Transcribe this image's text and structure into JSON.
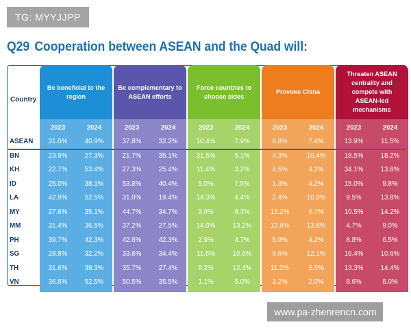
{
  "badge": "TG: MYYJJPP",
  "title": {
    "number": "Q29",
    "text": "Cooperation between ASEAN and the Quad will:"
  },
  "watermark": "www.pa-zhenrencn.com",
  "chart_data": {
    "type": "table",
    "row_header": "Country",
    "years": [
      "2023",
      "2024"
    ],
    "groups": [
      {
        "label": "Be beneficial to the region",
        "color": "#1e8fd6",
        "color_light": "#5aaee4",
        "values": {
          "ASEAN": [
            "31.0%",
            "40.9%"
          ],
          "BN": [
            "23.9%",
            "27.3%"
          ],
          "KH": [
            "22.7%",
            "53.4%"
          ],
          "ID": [
            "25.0%",
            "38.1%"
          ],
          "LA": [
            "42.9%",
            "52.5%"
          ],
          "MY": [
            "27.6%",
            "35.1%"
          ],
          "MM": [
            "31.4%",
            "36.5%"
          ],
          "PH": [
            "39.7%",
            "42.3%"
          ],
          "SG": [
            "28.8%",
            "32.2%"
          ],
          "TH": [
            "31.6%",
            "39.3%"
          ],
          "VN": [
            "36.6%",
            "52.5%"
          ]
        }
      },
      {
        "label": "Be complementary to ASEAN efforts",
        "color": "#5b55ac",
        "color_light": "#8c86c8",
        "values": {
          "ASEAN": [
            "37.8%",
            "32.2%"
          ],
          "BN": [
            "21.7%",
            "35.1%"
          ],
          "KH": [
            "27.3%",
            "25.4%"
          ],
          "ID": [
            "53.8%",
            "40.4%"
          ],
          "LA": [
            "31.0%",
            "19.4%"
          ],
          "MY": [
            "44.7%",
            "34.7%"
          ],
          "MM": [
            "37.2%",
            "27.5%"
          ],
          "PH": [
            "42.6%",
            "42.3%"
          ],
          "SG": [
            "33.6%",
            "34.4%"
          ],
          "TH": [
            "35.7%",
            "27.4%"
          ],
          "VN": [
            "50.5%",
            "35.5%"
          ]
        }
      },
      {
        "label": "Force countries to choose sides",
        "color": "#7bbf2e",
        "color_light": "#a6d46a",
        "values": {
          "ASEAN": [
            "10.4%",
            "7.9%"
          ],
          "BN": [
            "31.5%",
            "9.1%"
          ],
          "KH": [
            "11.4%",
            "3.2%"
          ],
          "ID": [
            "5.0%",
            "7.5%"
          ],
          "LA": [
            "14.3%",
            "4.4%"
          ],
          "MY": [
            "3.9%",
            "9.3%"
          ],
          "MM": [
            "14.0%",
            "13.2%"
          ],
          "PH": [
            "2.9%",
            "4.7%"
          ],
          "SG": [
            "11.6%",
            "10.6%"
          ],
          "TH": [
            "8.2%",
            "12.4%"
          ],
          "VN": [
            "1.1%",
            "5.0%"
          ]
        }
      },
      {
        "label": "Provoke China",
        "color": "#ee7d20",
        "color_light": "#f2a45a",
        "values": {
          "ASEAN": [
            "6.8%",
            "7.4%"
          ],
          "BN": [
            "4.3%",
            "10.4%"
          ],
          "KH": [
            "4.5%",
            "4.2%"
          ],
          "ID": [
            "1.3%",
            "4.2%"
          ],
          "LA": [
            "2.4%",
            "10.0%"
          ],
          "MY": [
            "13.2%",
            "6.7%"
          ],
          "MM": [
            "12.8%",
            "13.8%"
          ],
          "PH": [
            "5.9%",
            "4.2%"
          ],
          "SG": [
            "9.6%",
            "12.1%"
          ],
          "TH": [
            "11.2%",
            "6.5%"
          ],
          "VN": [
            "3.2%",
            "2.0%"
          ]
        }
      },
      {
        "label": "Threaten ASEAN centrality and compete with ASEAN-led mechanisms",
        "color": "#b0123a",
        "color_light": "#c74a68",
        "values": {
          "ASEAN": [
            "13.9%",
            "11.5%"
          ],
          "BN": [
            "18.5%",
            "18.2%"
          ],
          "KH": [
            "34.1%",
            "13.8%"
          ],
          "ID": [
            "15.0%",
            "9.8%"
          ],
          "LA": [
            "9.5%",
            "13.8%"
          ],
          "MY": [
            "10.5%",
            "14.2%"
          ],
          "MM": [
            "4.7%",
            "9.0%"
          ],
          "PH": [
            "8.8%",
            "6.5%"
          ],
          "SG": [
            "16.4%",
            "10.6%"
          ],
          "TH": [
            "13.3%",
            "14.4%"
          ],
          "VN": [
            "8.6%",
            "5.0%"
          ]
        }
      }
    ],
    "rows": [
      "ASEAN",
      "BN",
      "KH",
      "ID",
      "LA",
      "MY",
      "MM",
      "PH",
      "SG",
      "TH",
      "VN"
    ]
  }
}
